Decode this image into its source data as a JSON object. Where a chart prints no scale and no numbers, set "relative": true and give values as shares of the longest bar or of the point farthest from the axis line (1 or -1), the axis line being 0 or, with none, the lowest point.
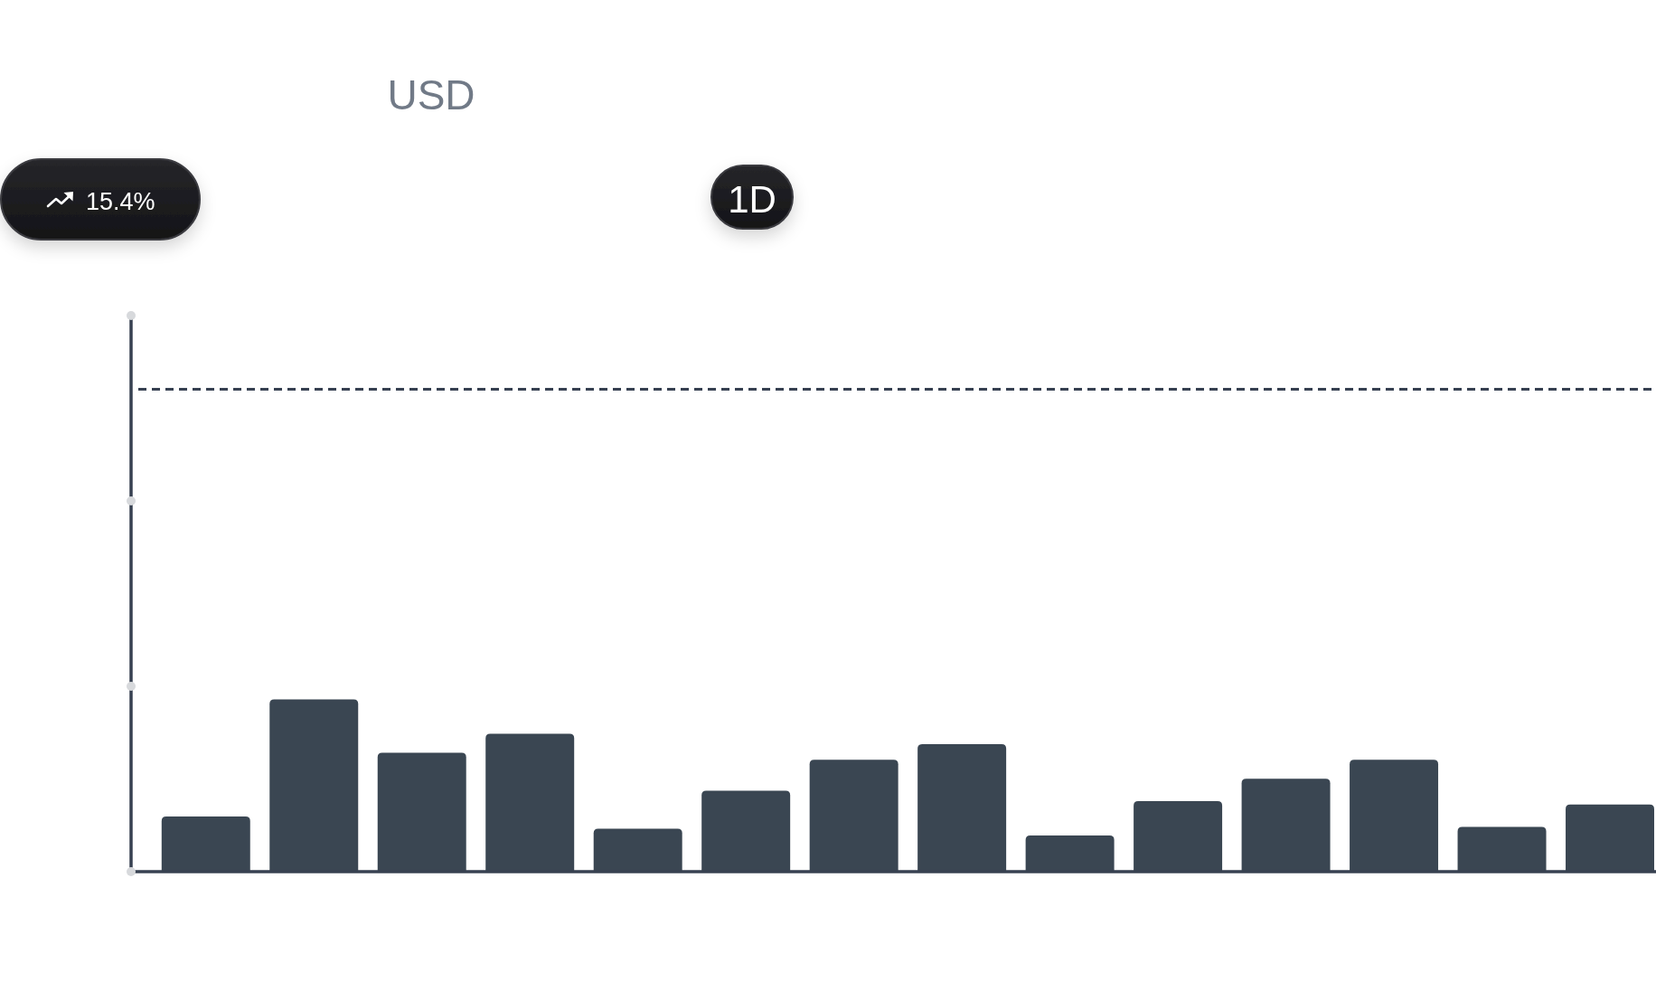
{
  "chart_data": {
    "type": "bar",
    "title": "USD",
    "annotations": [
      "15.4%",
      "1D"
    ],
    "categories": [
      null,
      null,
      null,
      null,
      null,
      null,
      null,
      null,
      null,
      null,
      null,
      null,
      null,
      null
    ],
    "values": [
      0.32,
      1,
      0.69,
      0.8,
      0.25,
      0.47,
      0.65,
      0.74,
      0.21,
      0.41,
      0.54,
      0.65,
      0.26,
      0.39
    ],
    "color": "#3a4652",
    "relative": true,
    "ref_lines": [
      {
        "axis": "y",
        "value": 2.8,
        "color": "#374151",
        "line_style": "dashed"
      }
    ]
  }
}
